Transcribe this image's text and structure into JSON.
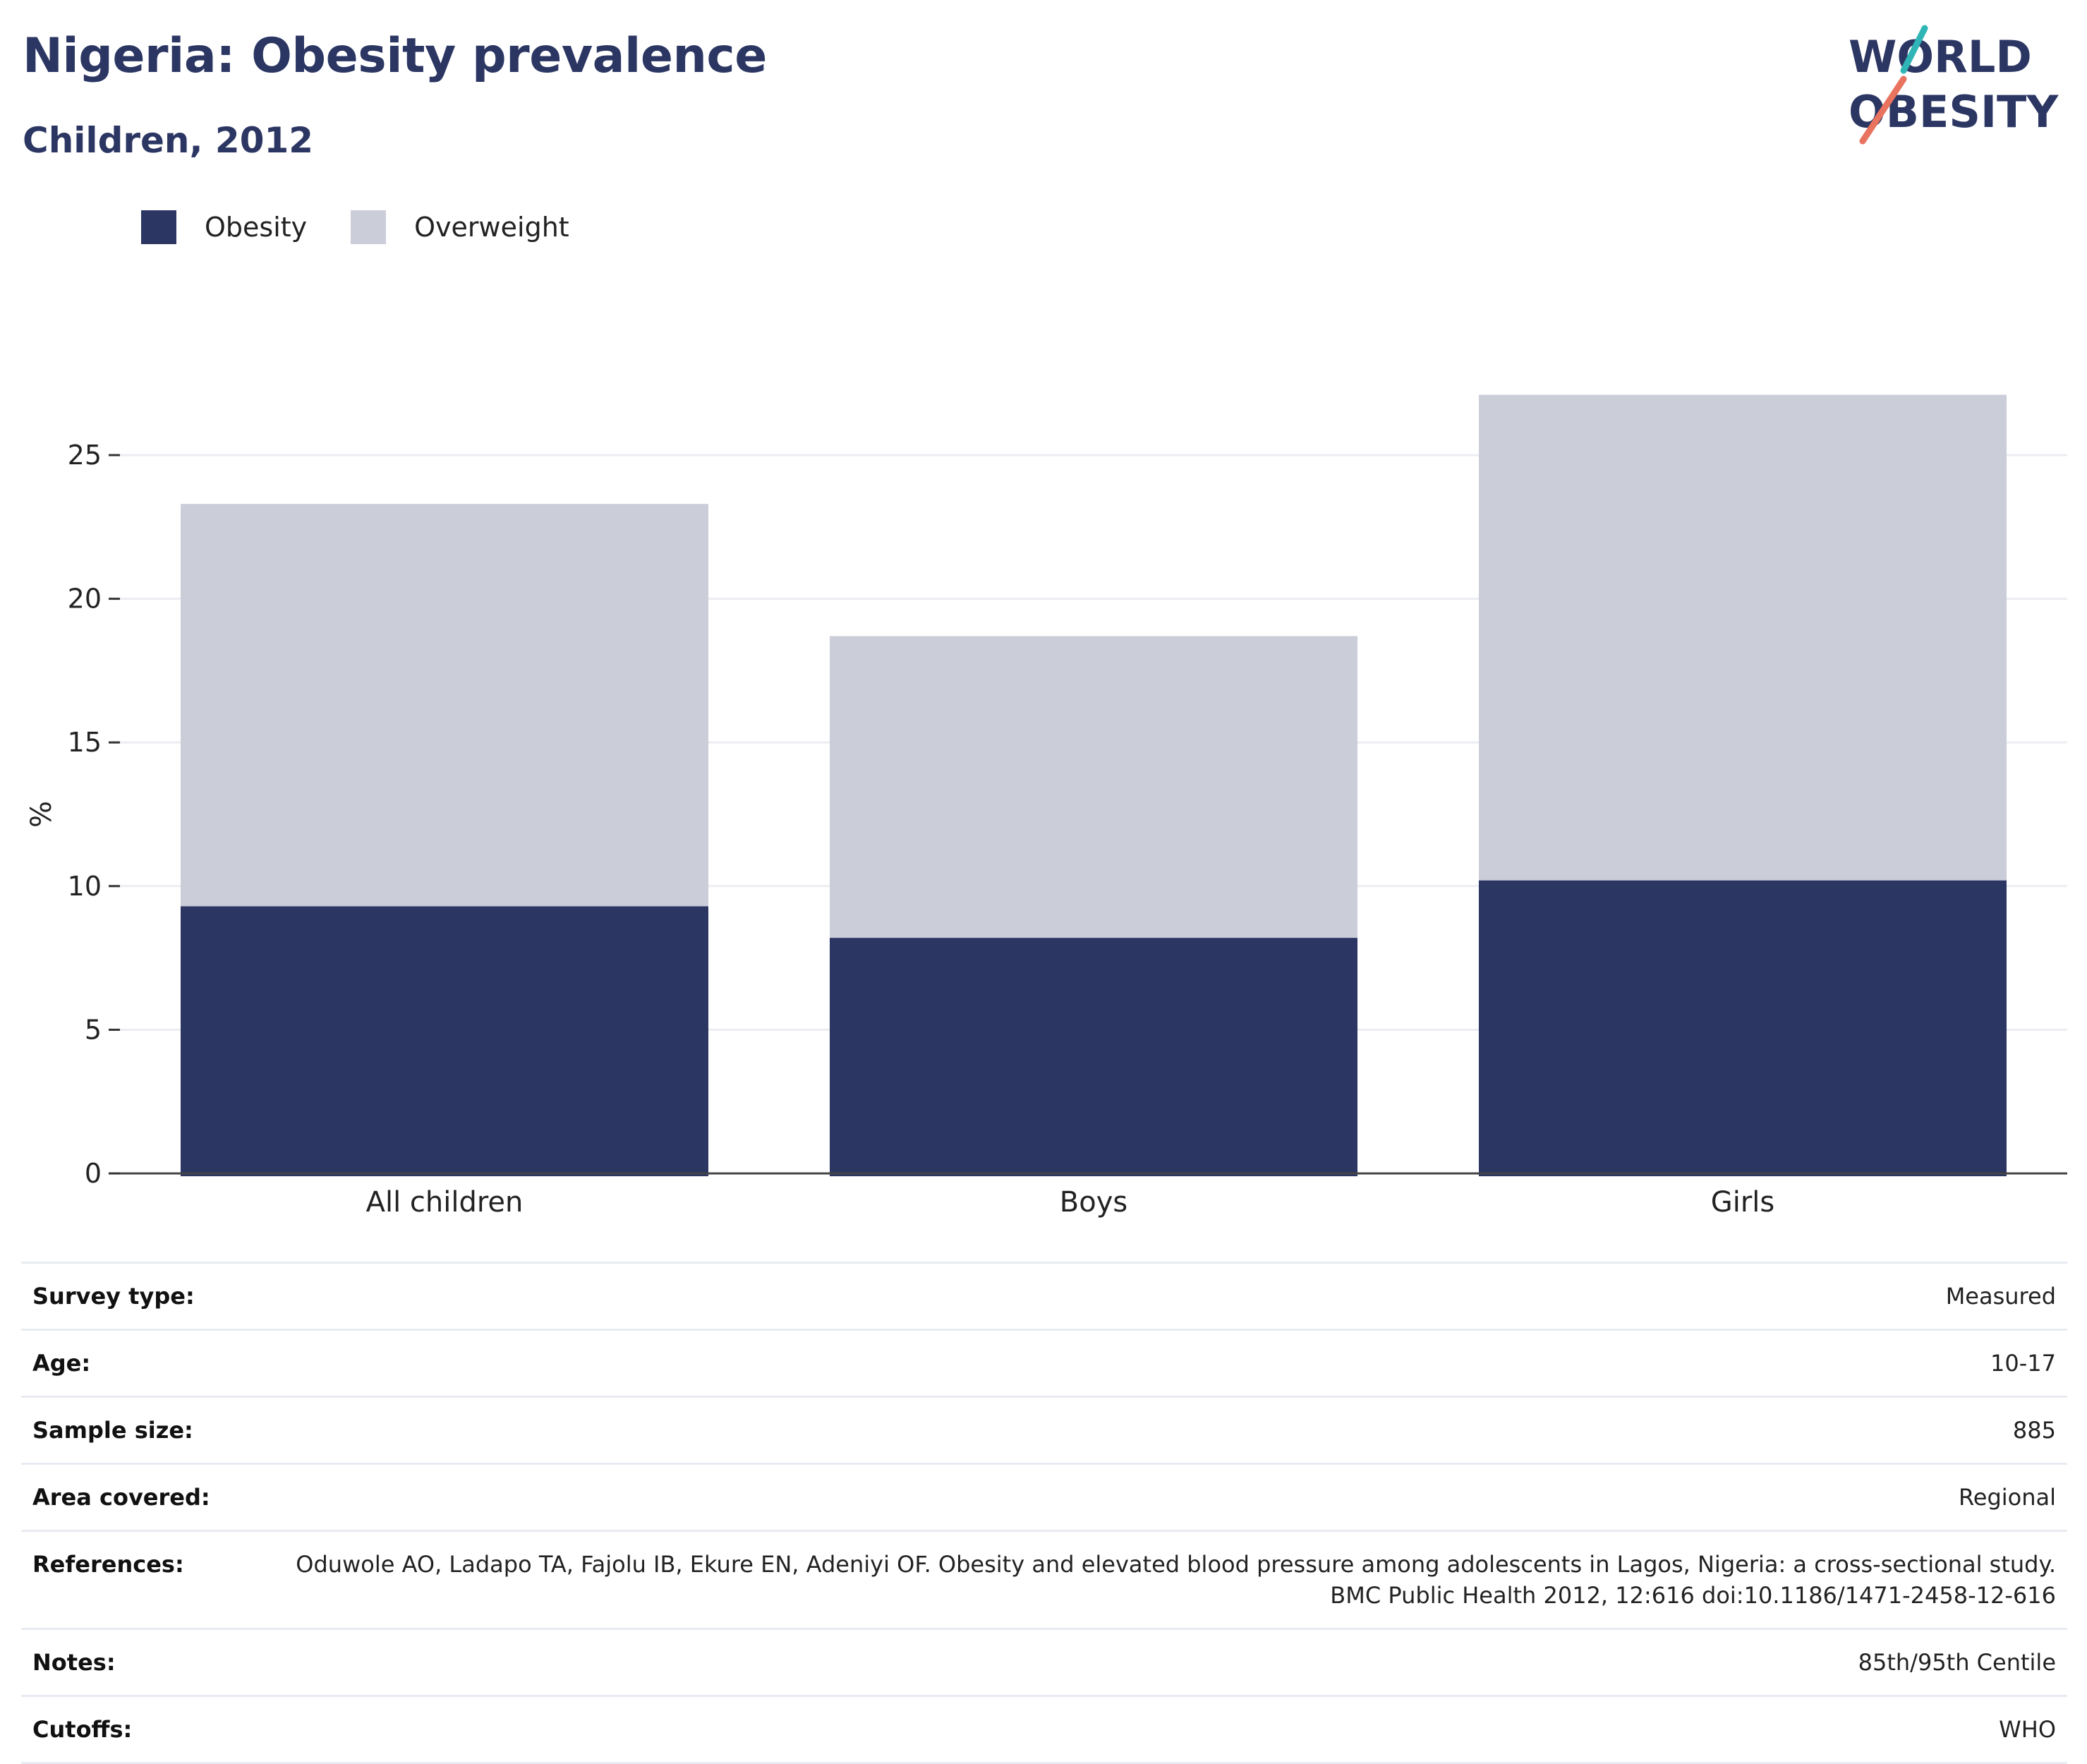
{
  "header": {
    "title": "Nigeria: Obesity prevalence",
    "subtitle": "Children, 2012"
  },
  "logo": {
    "line1": "W",
    "line1b": "RLD",
    "line2": "BESITY",
    "colors": {
      "navy": "#2b3663",
      "teal": "#2fb5b5",
      "coral": "#e8735e"
    }
  },
  "legend": {
    "items": [
      {
        "label": "Obesity",
        "color": "#2b3663"
      },
      {
        "label": "Overweight",
        "color": "#cbcdd8"
      }
    ]
  },
  "chart_data": {
    "type": "bar",
    "stacked": true,
    "categories": [
      "All children",
      "Boys",
      "Girls"
    ],
    "series": [
      {
        "name": "Obesity",
        "color": "#2b3663",
        "values": [
          9.3,
          8.2,
          10.2
        ]
      },
      {
        "name": "Overweight",
        "color": "#cbcdd8",
        "values": [
          14.0,
          10.5,
          16.9
        ]
      }
    ],
    "ylabel": "%",
    "xlabel": "",
    "ylim": [
      0,
      28.5
    ],
    "yticks": [
      0,
      5,
      10,
      15,
      20,
      25
    ],
    "grid": true,
    "legend_position": "top-left"
  },
  "info": {
    "rows": [
      {
        "key": "Survey type:",
        "value": "Measured"
      },
      {
        "key": "Age:",
        "value": "10-17"
      },
      {
        "key": "Sample size:",
        "value": "885"
      },
      {
        "key": "Area covered:",
        "value": "Regional"
      },
      {
        "key": "References:",
        "value": "Oduwole AO, Ladapo TA, Fajolu IB, Ekure EN, Adeniyi OF. Obesity and elevated blood pressure among adolescents in Lagos, Nigeria: a cross-sectional study. BMC Public Health 2012, 12:616 doi:10.1186/1471-2458-12-616"
      },
      {
        "key": "Notes:",
        "value": "85th/95th Centile"
      },
      {
        "key": "Cutoffs:",
        "value": "WHO"
      }
    ]
  }
}
